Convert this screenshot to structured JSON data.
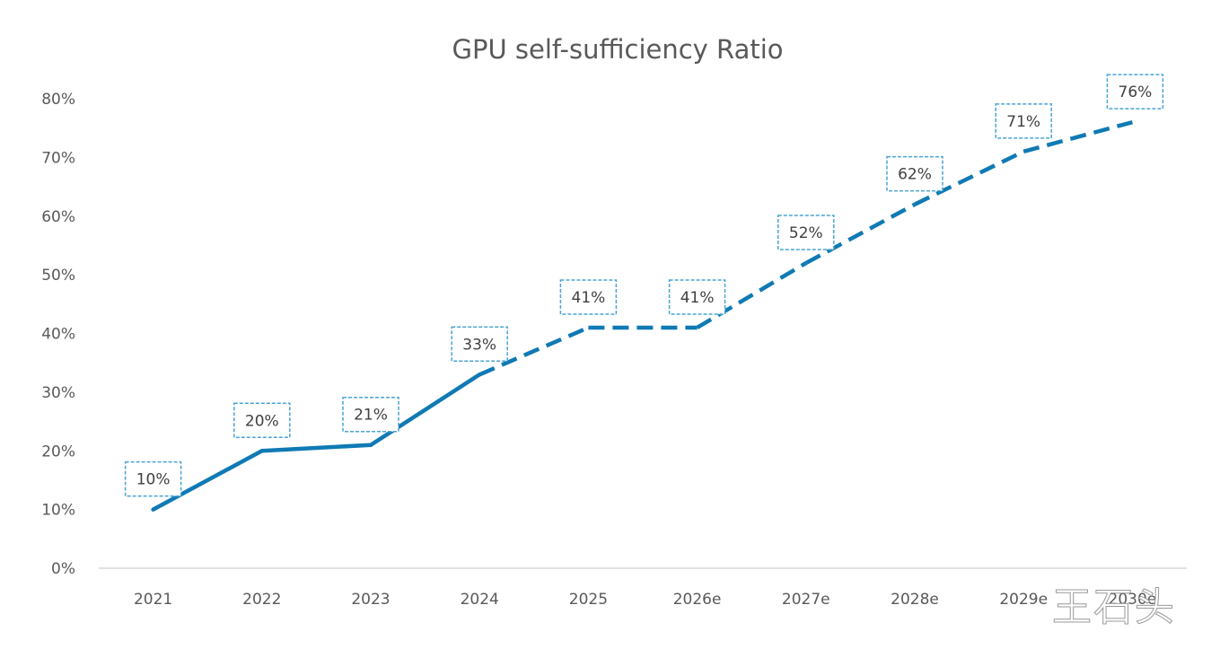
{
  "chart_data": {
    "type": "line",
    "title": "GPU self-sufficiency Ratio",
    "xlabel": "",
    "ylabel": "",
    "categories": [
      "2021",
      "2022",
      "2023",
      "2024",
      "2025",
      "2026e",
      "2027e",
      "2028e",
      "2029e",
      "2030e"
    ],
    "series": [
      {
        "name": "GPU self-sufficiency ratio",
        "values": [
          10,
          20,
          21,
          33,
          41,
          41,
          52,
          62,
          71,
          76
        ],
        "data_labels": [
          "10%",
          "20%",
          "21%",
          "33%",
          "41%",
          "41%",
          "52%",
          "62%",
          "71%",
          "76%"
        ],
        "line_style": {
          "solid_through": "2024",
          "dashed_from": "2024"
        },
        "color": "#0F7AB4"
      }
    ],
    "ylim": [
      0,
      80
    ],
    "yticks": [
      0,
      10,
      20,
      30,
      40,
      50,
      60,
      70,
      80
    ],
    "ytick_labels": [
      "0%",
      "10%",
      "20%",
      "30%",
      "40%",
      "50%",
      "60%",
      "70%",
      "80%"
    ],
    "grid": false,
    "legend": "none",
    "label_box_color": "#4BA3D3"
  },
  "watermark": "王石头"
}
